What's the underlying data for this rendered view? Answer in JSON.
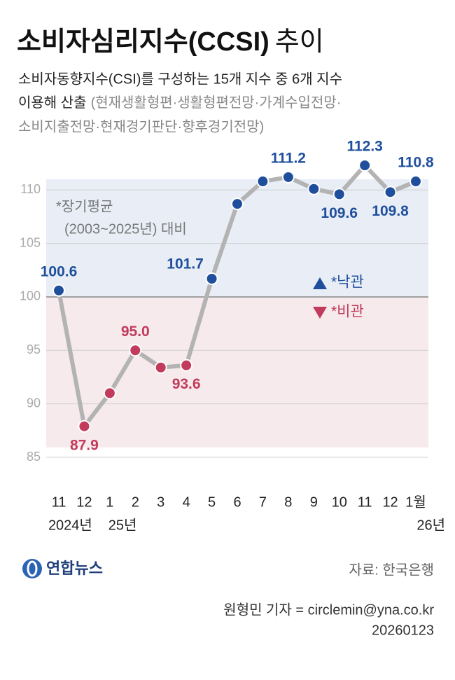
{
  "chart_data": {
    "type": "line",
    "title": "소비자심리지수(CCSI)",
    "title_suffix": "추이",
    "subtitle": [
      "소비자동향지수(CSI)를 구성하는 15개 지수 중 6개 지수",
      "이용해 산출",
      "(현재생활형편·생활형편전망·가계수입전망·",
      "소비지출전망·현재경기판단·향후경기전망)"
    ],
    "categories": [
      "11",
      "12",
      "1",
      "2",
      "3",
      "4",
      "5",
      "6",
      "7",
      "8",
      "9",
      "10",
      "11",
      "12",
      "1월"
    ],
    "year_labels": [
      "2024년",
      "25년",
      "26년"
    ],
    "values": [
      100.6,
      87.9,
      91.0,
      95.0,
      93.4,
      93.6,
      101.7,
      108.7,
      110.8,
      111.2,
      110.1,
      109.6,
      112.3,
      109.8,
      110.8
    ],
    "value_labels": [
      "100.6",
      "87.9",
      null,
      "95.0",
      null,
      "93.6",
      "101.7",
      null,
      null,
      "111.2",
      null,
      "109.6",
      "112.3",
      "109.8",
      "110.8"
    ],
    "baseline": 100,
    "ylim": [
      85,
      111
    ],
    "yticks": [
      85,
      90,
      95,
      100,
      105,
      110
    ],
    "grid": true,
    "line_color": "#b3b3b3",
    "above_color": "#1f4f9c",
    "below_color": "#c23a5c",
    "annotation": [
      "*장기평균",
      "(2003~2025년) 대비"
    ],
    "legend": [
      "*낙관",
      "*비관"
    ],
    "logo": "연합뉴스",
    "source": "자료: 한국은행",
    "credit": "원형민 기자 = circlemin@yna.co.kr",
    "date": "20260123"
  }
}
